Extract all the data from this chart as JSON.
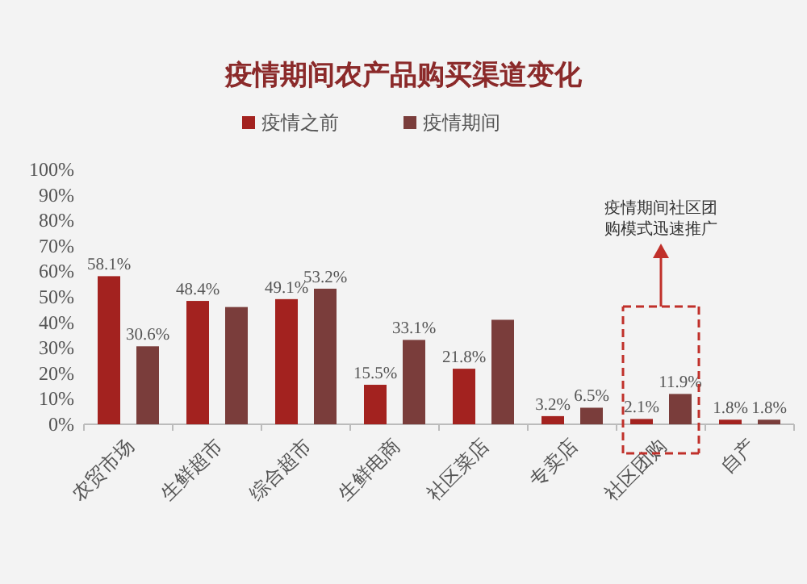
{
  "chart_data": {
    "type": "bar",
    "title": "疫情期间农产品购买渠道变化",
    "categories": [
      "农贸市场",
      "生鲜超市",
      "综合超市",
      "生鲜电商",
      "社区菜店",
      "专卖店",
      "社区团购",
      "自产"
    ],
    "series": [
      {
        "name": "疫情之前",
        "color": "#a3221f",
        "values": [
          58.1,
          48.4,
          49.1,
          15.5,
          21.8,
          3.2,
          2.1,
          1.8
        ],
        "value_labels": [
          "58.1%",
          "48.4%",
          "49.1%",
          "15.5%",
          "21.8%",
          "3.2%",
          "2.1%",
          "1.8%"
        ]
      },
      {
        "name": "疫情期间",
        "color": "#7a3d3b",
        "values": [
          30.6,
          46,
          53.2,
          33.1,
          41,
          6.5,
          11.9,
          1.8
        ],
        "value_labels": [
          "30.6%",
          null,
          "53.2%",
          "33.1%",
          null,
          "6.5%",
          "11.9%",
          "1.8%"
        ]
      }
    ],
    "ylim": [
      0,
      100
    ],
    "yticks": [
      {
        "value": 0,
        "label": "0%"
      },
      {
        "value": 10,
        "label": "10%"
      },
      {
        "value": 20,
        "label": "20%"
      },
      {
        "value": 30,
        "label": "30%"
      },
      {
        "value": 40,
        "label": "40%"
      },
      {
        "value": 50,
        "label": "50%"
      },
      {
        "value": 60,
        "label": "60%"
      },
      {
        "value": 70,
        "label": "70%"
      },
      {
        "value": 80,
        "label": "80%"
      },
      {
        "value": 90,
        "label": "90%"
      },
      {
        "value": 100,
        "label": "100%"
      }
    ],
    "annotations": [
      "疫情期间社区团购模式迅速推广"
    ],
    "legend": "top",
    "grid": false
  }
}
